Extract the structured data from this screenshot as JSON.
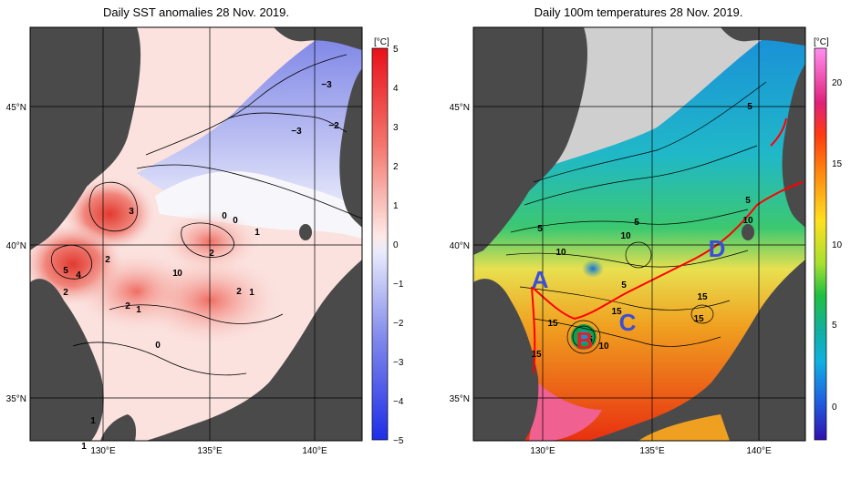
{
  "panels": {
    "left": {
      "title": "Daily SST anomalies 28 Nov. 2019.",
      "unit": "[°C]",
      "lat_labels": [
        "45°N",
        "40°N",
        "35°N"
      ],
      "lon_labels": [
        "130°E",
        "135°E",
        "140°E"
      ],
      "colorbar_ticks": [
        "5",
        "4",
        "3",
        "2",
        "1",
        "0",
        "−1",
        "−2",
        "−3",
        "−4",
        "−5"
      ],
      "contour_labels": [
        "−3",
        "−2",
        "−3",
        "3",
        "0",
        "0",
        "1",
        "2",
        "2",
        "5",
        "4",
        "2",
        "0",
        "1",
        "2",
        "1",
        "2",
        "1",
        "0",
        "1",
        "1"
      ],
      "colors": {
        "warm": "#e8282b",
        "cold": "#2b3de8",
        "neutral": "#ffffff",
        "land": "#4a4a4a"
      }
    },
    "right": {
      "title": "Daily 100m temperatures 28 Nov. 2019.",
      "unit": "[°C]",
      "lat_labels": [
        "45°N",
        "40°N",
        "35°N"
      ],
      "lon_labels": [
        "130°E",
        "135°E",
        "140°E"
      ],
      "colorbar_ticks": [
        "20",
        "15",
        "10",
        "5",
        "0"
      ],
      "contour_labels": [
        "5",
        "5",
        "5",
        "10",
        "5",
        "10",
        "10",
        "5",
        "15",
        "15",
        "15",
        "15",
        "10",
        "5",
        "15"
      ],
      "regions": [
        "A",
        "B",
        "C",
        "D"
      ],
      "colors": {
        "region_blue": "#3b4fd6",
        "region_red": "#e32020",
        "polar_front": "#ff0000",
        "land": "#4a4a4a"
      }
    }
  }
}
